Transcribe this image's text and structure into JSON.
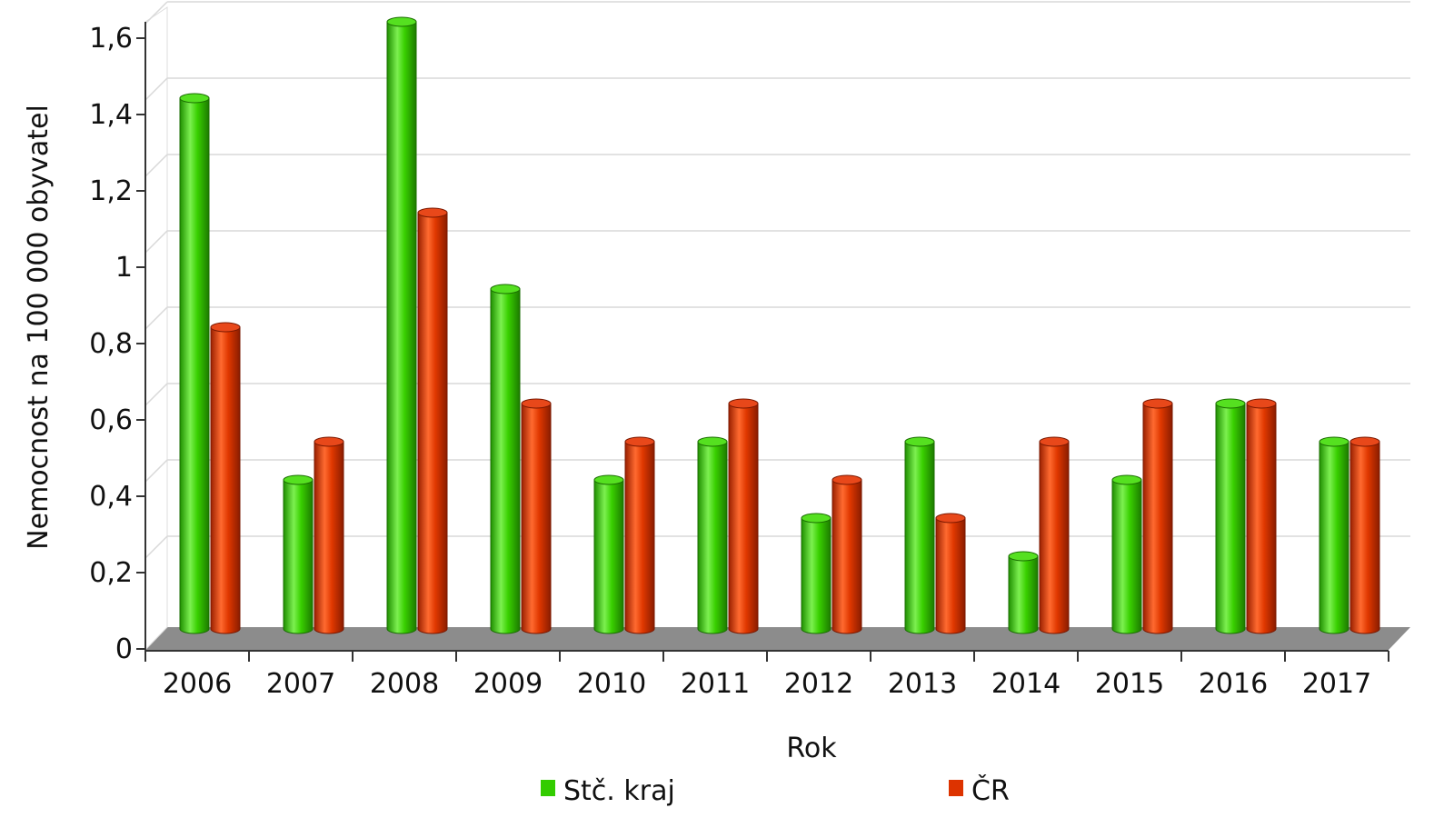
{
  "chart_data": {
    "type": "bar",
    "categories": [
      "2006",
      "2007",
      "2008",
      "2009",
      "2010",
      "2011",
      "2012",
      "2013",
      "2014",
      "2015",
      "2016",
      "2017"
    ],
    "series": [
      {
        "name": "Stč. kraj",
        "color": "#33cc00",
        "values": [
          1.4,
          0.4,
          1.6,
          0.9,
          0.4,
          0.5,
          0.3,
          0.5,
          0.2,
          0.4,
          0.6,
          0.5
        ]
      },
      {
        "name": "ČR",
        "color": "#dd3300",
        "values": [
          0.8,
          0.5,
          1.1,
          0.6,
          0.5,
          0.6,
          0.4,
          0.3,
          0.5,
          0.6,
          0.6,
          0.5
        ]
      }
    ],
    "xlabel": "Rok",
    "ylabel": "Nemocnost na 100 000 obyvatel",
    "ylim": [
      0,
      1.6
    ],
    "yticks": [
      "0",
      "0,2",
      "0,4",
      "0,6",
      "0,8",
      "1",
      "1,2",
      "1,4",
      "1,6"
    ],
    "grid": true,
    "legend_position": "bottom",
    "style": "3d-cylinder"
  }
}
